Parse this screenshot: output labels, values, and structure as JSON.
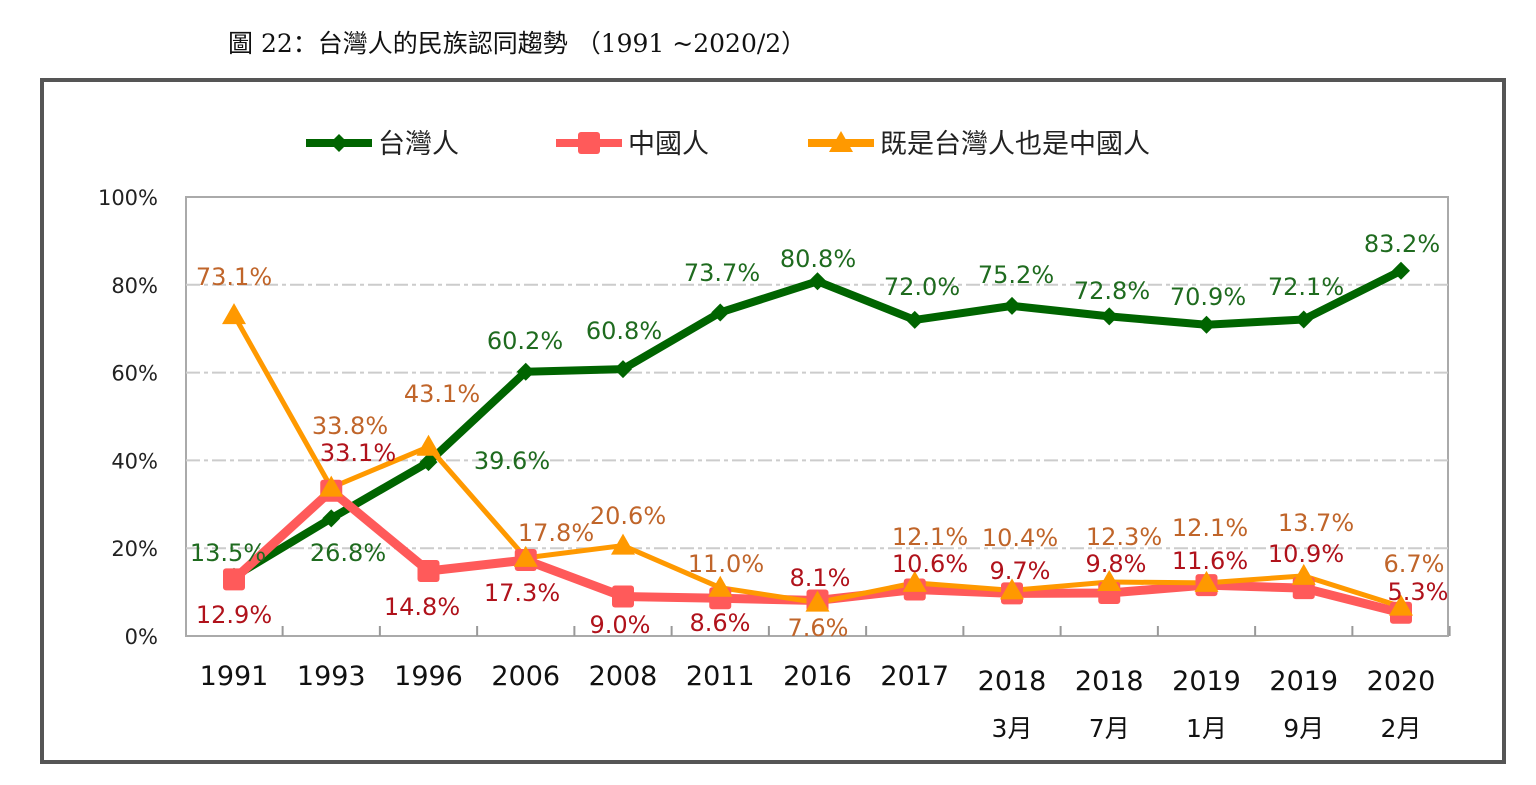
{
  "title": "圖 22：台灣人的民族認同趨勢 （1991 ~2020/2）",
  "chart_data": {
    "type": "line",
    "title": "圖 22：台灣人的民族認同趨勢 （1991 ~2020/2）",
    "categories": [
      [
        "1991"
      ],
      [
        "1993"
      ],
      [
        "1996"
      ],
      [
        "2006"
      ],
      [
        "2008"
      ],
      [
        "2011"
      ],
      [
        "2016"
      ],
      [
        "2017"
      ],
      [
        "2018",
        "3月"
      ],
      [
        "2018",
        "7月"
      ],
      [
        "2019",
        "1月"
      ],
      [
        "2019",
        "9月"
      ],
      [
        "2020",
        "2月"
      ]
    ],
    "ylim": [
      0,
      100
    ],
    "yticks": [
      "0%",
      "20%",
      "40%",
      "60%",
      "80%",
      "100%"
    ],
    "grid": true,
    "legend_position": "top",
    "series": [
      {
        "name": "台灣人",
        "color": "#006400",
        "label_color": "#1f6b1f",
        "marker": "diamond",
        "values": [
          13.5,
          26.8,
          39.6,
          60.2,
          60.8,
          73.7,
          80.8,
          72.0,
          75.2,
          72.8,
          70.9,
          72.1,
          83.2
        ]
      },
      {
        "name": "中國人",
        "color": "#ff5a5a",
        "label_color": "#b0121b",
        "marker": "square",
        "values": [
          12.9,
          33.1,
          14.8,
          17.3,
          9.0,
          8.6,
          8.1,
          10.6,
          9.7,
          9.8,
          11.6,
          10.9,
          5.3
        ]
      },
      {
        "name": "既是台灣人也是中國人",
        "color": "#ff9900",
        "label_color": "#c0652a",
        "marker": "triangle",
        "values": [
          73.1,
          33.8,
          43.1,
          17.8,
          20.6,
          11.0,
          7.6,
          12.1,
          10.4,
          12.3,
          12.1,
          13.7,
          6.7
        ]
      }
    ]
  }
}
